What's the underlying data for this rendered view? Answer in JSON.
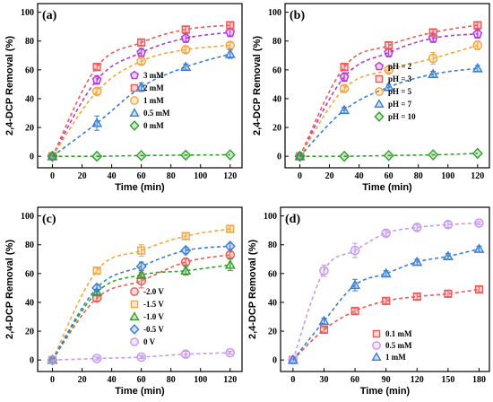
{
  "chart_data": [
    {
      "type": "line",
      "panel_label": "(a)",
      "xlabel": "Time (min)",
      "ylabel": "2,4-DCP Removal (%)",
      "xlim": [
        -10,
        128
      ],
      "ylim": [
        -8,
        106
      ],
      "xticks": [
        0,
        20,
        40,
        60,
        80,
        100,
        120
      ],
      "yticks": [
        0,
        20,
        40,
        60,
        80,
        100
      ],
      "legend_position": "right",
      "series": [
        {
          "name": "3 mM",
          "marker": "pentagon",
          "color": "#b13bd4",
          "x": [
            0,
            30,
            60,
            90,
            120
          ],
          "y": [
            0,
            53,
            72,
            82,
            86
          ],
          "err": [
            0,
            3,
            3,
            3,
            3
          ]
        },
        {
          "name": "2 mM",
          "marker": "square",
          "color": "#ef5a5a",
          "x": [
            0,
            30,
            60,
            90,
            120
          ],
          "y": [
            0,
            62,
            79,
            88,
            91
          ],
          "err": [
            0,
            2,
            2,
            2,
            2
          ]
        },
        {
          "name": "1 mM",
          "marker": "circle",
          "color": "#f5a641",
          "x": [
            0,
            30,
            60,
            90,
            120
          ],
          "y": [
            0,
            45,
            66,
            74,
            77
          ],
          "err": [
            0,
            2,
            2,
            2,
            2
          ]
        },
        {
          "name": "0.5 mM",
          "marker": "triangle",
          "color": "#3a7fd5",
          "x": [
            0,
            30,
            60,
            90,
            120
          ],
          "y": [
            0,
            23,
            48,
            62,
            71
          ],
          "err": [
            0,
            5,
            3,
            2,
            3
          ]
        },
        {
          "name": "0 mM",
          "marker": "diamond",
          "color": "#33a02c",
          "x": [
            0,
            30,
            60,
            90,
            120
          ],
          "y": [
            0,
            0,
            0.5,
            0.8,
            1
          ],
          "err": [
            0,
            0,
            0,
            0,
            0
          ]
        }
      ]
    },
    {
      "type": "line",
      "panel_label": "(b)",
      "xlabel": "Time (min)",
      "ylabel": "2,4-DCP Removal (%)",
      "xlim": [
        -10,
        128
      ],
      "ylim": [
        -8,
        106
      ],
      "xticks": [
        0,
        20,
        40,
        60,
        80,
        100,
        120
      ],
      "yticks": [
        0,
        20,
        40,
        60,
        80,
        100
      ],
      "legend_position": "right",
      "series": [
        {
          "name": "pH = 2",
          "marker": "pentagon",
          "color": "#b13bd4",
          "x": [
            0,
            30,
            60,
            90,
            120
          ],
          "y": [
            0,
            55,
            72,
            82,
            85
          ],
          "err": [
            0,
            3,
            3,
            3,
            3
          ]
        },
        {
          "name": "pH = 3",
          "marker": "square",
          "color": "#ef5a5a",
          "x": [
            0,
            30,
            60,
            90,
            120
          ],
          "y": [
            0,
            62,
            77,
            86,
            91
          ],
          "err": [
            0,
            2,
            2,
            2,
            2
          ]
        },
        {
          "name": "pH = 5",
          "marker": "circle",
          "color": "#f5a641",
          "x": [
            0,
            30,
            60,
            90,
            120
          ],
          "y": [
            0,
            47,
            60,
            68,
            77
          ],
          "err": [
            0,
            2,
            2,
            4,
            3
          ]
        },
        {
          "name": "pH = 7",
          "marker": "triangle",
          "color": "#3a7fd5",
          "x": [
            0,
            30,
            60,
            90,
            120
          ],
          "y": [
            0,
            32,
            48,
            57,
            61
          ],
          "err": [
            0,
            2,
            2,
            2,
            2
          ]
        },
        {
          "name": "pH = 10",
          "marker": "diamond",
          "color": "#33a02c",
          "x": [
            0,
            30,
            60,
            90,
            120
          ],
          "y": [
            0,
            0,
            0.5,
            1,
            2
          ],
          "err": [
            0,
            0,
            0,
            0,
            0
          ]
        }
      ]
    },
    {
      "type": "line",
      "panel_label": "(c)",
      "xlabel": "Time (min)",
      "ylabel": "2,4-DCP Removal (%)",
      "xlim": [
        -10,
        128
      ],
      "ylim": [
        -8,
        106
      ],
      "xticks": [
        0,
        20,
        40,
        60,
        80,
        100,
        120
      ],
      "yticks": [
        0,
        20,
        40,
        60,
        80,
        100
      ],
      "legend_position": "right",
      "series": [
        {
          "name": "-2.0 V",
          "marker": "circle",
          "color": "#ef5a5a",
          "x": [
            0,
            30,
            60,
            90,
            120
          ],
          "y": [
            0,
            43,
            55,
            68,
            73
          ],
          "err": [
            0,
            2,
            5,
            2,
            2
          ]
        },
        {
          "name": "-1.5 V",
          "marker": "square",
          "color": "#f5a641",
          "x": [
            0,
            30,
            60,
            90,
            120
          ],
          "y": [
            0,
            62,
            76,
            86,
            91
          ],
          "err": [
            0,
            2,
            4,
            2,
            2
          ]
        },
        {
          "name": "-1.0 V",
          "marker": "triangle",
          "color": "#33a02c",
          "x": [
            0,
            30,
            60,
            90,
            120
          ],
          "y": [
            0,
            47,
            59,
            62,
            66
          ],
          "err": [
            0,
            2,
            2,
            3,
            4
          ]
        },
        {
          "name": "-0.5 V",
          "marker": "diamond",
          "color": "#3a7fd5",
          "x": [
            0,
            30,
            60,
            90,
            120
          ],
          "y": [
            0,
            50,
            65,
            76,
            79
          ],
          "err": [
            0,
            2,
            3,
            2,
            2
          ]
        },
        {
          "name": "0 V",
          "marker": "circle",
          "color": "#c79af0",
          "x": [
            0,
            30,
            60,
            90,
            120
          ],
          "y": [
            0,
            1,
            2,
            4,
            5
          ],
          "err": [
            0,
            1,
            1,
            2,
            1
          ]
        }
      ]
    },
    {
      "type": "line",
      "panel_label": "(d)",
      "xlabel": "Time (min)",
      "ylabel": "2,4-DCP Removal (%)",
      "xlim": [
        -12,
        190
      ],
      "ylim": [
        -8,
        106
      ],
      "xticks": [
        0,
        30,
        60,
        90,
        120,
        150,
        180
      ],
      "yticks": [
        0,
        20,
        40,
        60,
        80,
        100
      ],
      "legend_position": "bottom-right",
      "series": [
        {
          "name": "0.1 mM",
          "marker": "square",
          "color": "#ef5a5a",
          "x": [
            0,
            30,
            60,
            90,
            120,
            150,
            180
          ],
          "y": [
            0,
            21,
            34,
            41,
            44,
            46,
            49
          ],
          "err": [
            0,
            2,
            2,
            2,
            2,
            2,
            2
          ]
        },
        {
          "name": "0.5 mM",
          "marker": "circle",
          "color": "#c79af0",
          "x": [
            0,
            30,
            60,
            90,
            120,
            150,
            180
          ],
          "y": [
            0,
            62,
            76,
            88,
            92,
            94,
            95
          ],
          "err": [
            0,
            4,
            5,
            2,
            2,
            2,
            1
          ]
        },
        {
          "name": "1 mM",
          "marker": "triangle",
          "color": "#3a7fd5",
          "x": [
            0,
            30,
            60,
            90,
            120,
            150,
            180
          ],
          "y": [
            0,
            27,
            52,
            60,
            68,
            72,
            77
          ],
          "err": [
            0,
            2,
            4,
            2,
            2,
            2,
            2
          ]
        }
      ]
    }
  ]
}
